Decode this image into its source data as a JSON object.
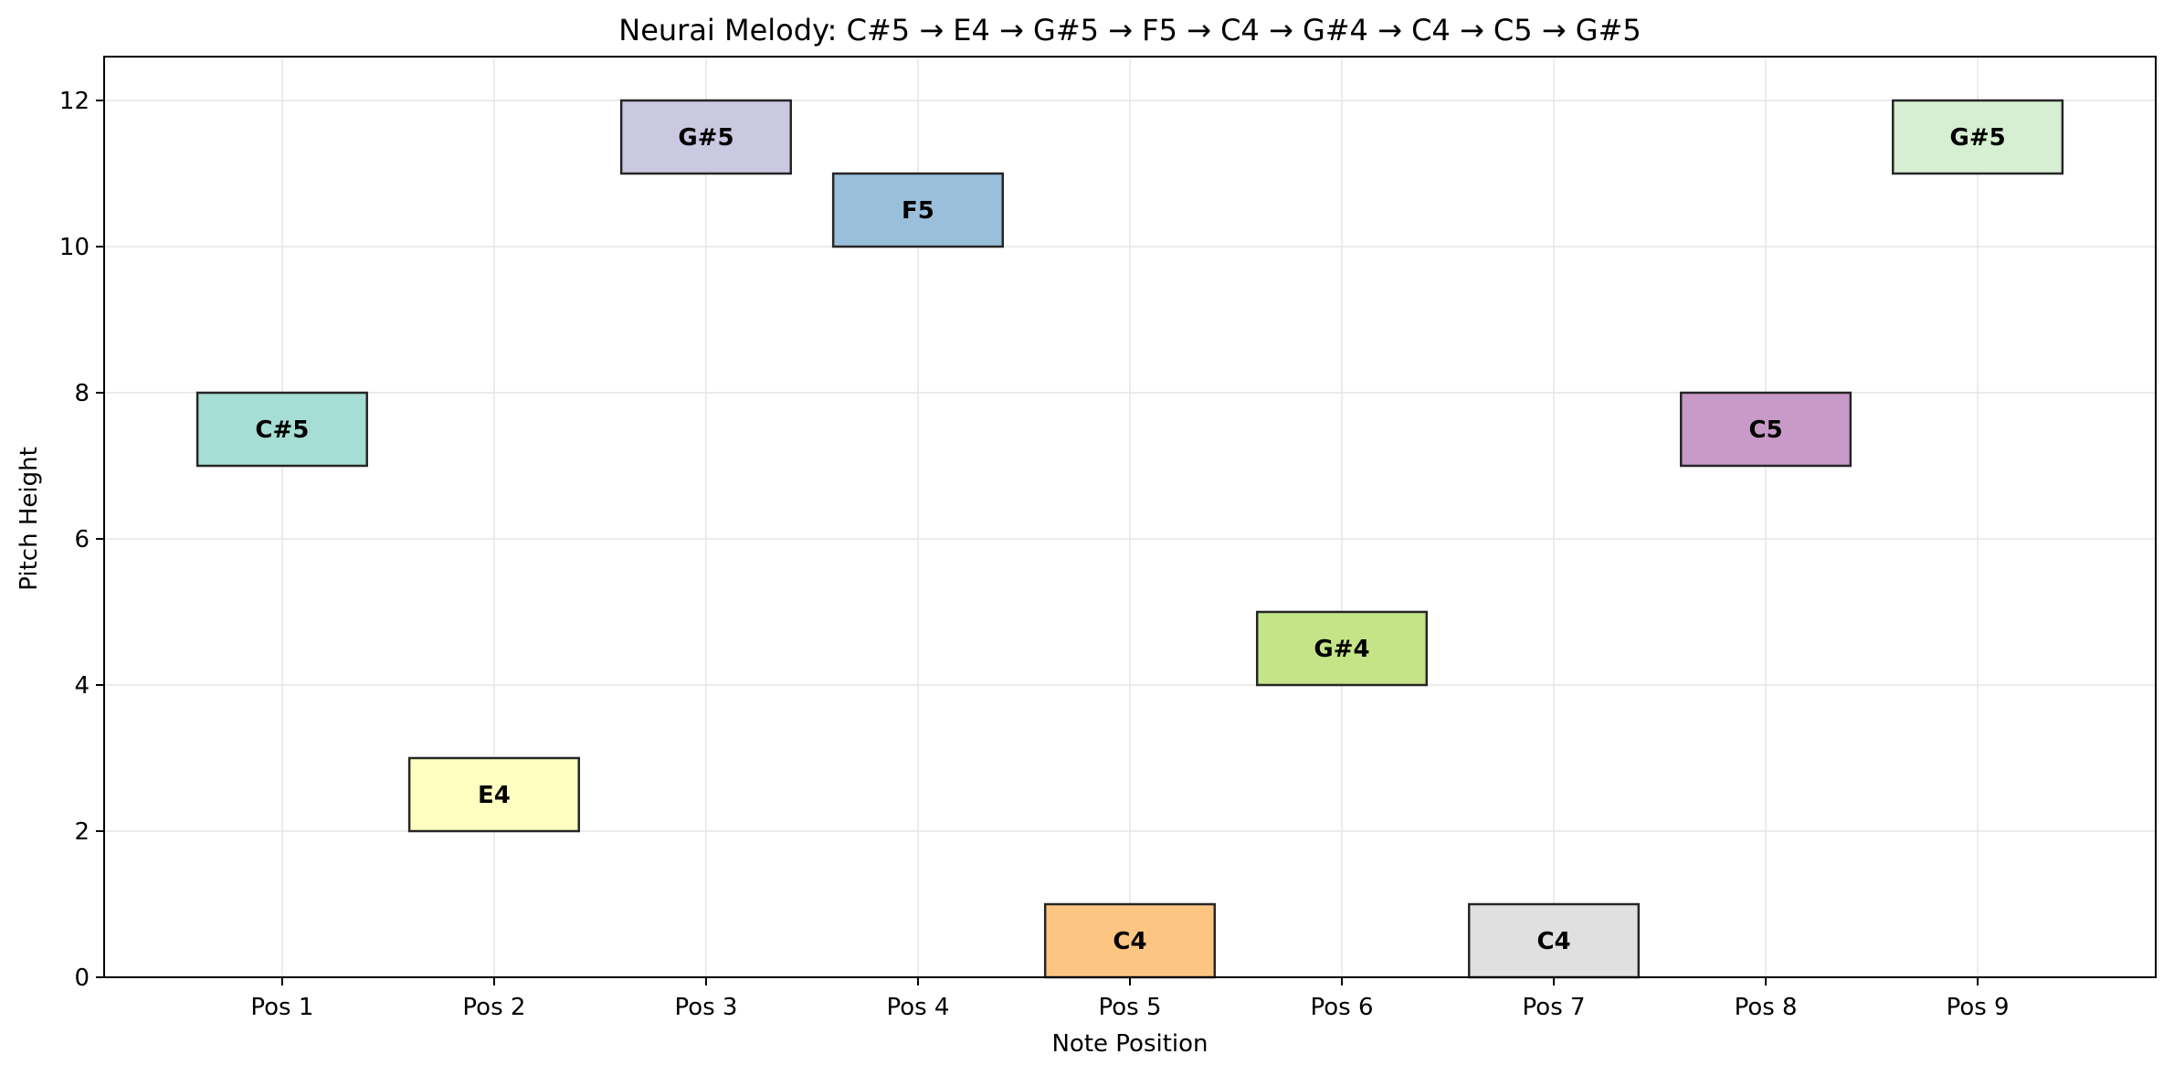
{
  "chart_data": {
    "type": "bar",
    "title": "Neurai Melody: C#5 → E4 → G#5 → F5 → C4 → G#4 → C4 → C5 → G#5",
    "xlabel": "Note Position",
    "ylabel": "Pitch Height",
    "categories": [
      "Pos 1",
      "Pos 2",
      "Pos 3",
      "Pos 4",
      "Pos 5",
      "Pos 6",
      "Pos 7",
      "Pos 8",
      "Pos 9"
    ],
    "ylim": [
      0,
      12.6
    ],
    "yticks": [
      "0",
      "2",
      "4",
      "6",
      "8",
      "10",
      "12"
    ],
    "grid": true,
    "notes": [
      {
        "position": 1,
        "note": "C#5",
        "pitch": 7,
        "duration": 1,
        "color": "#a6ddd4"
      },
      {
        "position": 2,
        "note": "E4",
        "pitch": 2,
        "duration": 1,
        "color": "#ffffc2"
      },
      {
        "position": 3,
        "note": "G#5",
        "pitch": 11,
        "duration": 1,
        "color": "#cbc8e2"
      },
      {
        "position": 4,
        "note": "F5",
        "pitch": 10,
        "duration": 1,
        "color": "#9abfda"
      },
      {
        "position": 5,
        "note": "C4",
        "pitch": 0,
        "duration": 1,
        "color": "#fdc582"
      },
      {
        "position": 6,
        "note": "G#4",
        "pitch": 4,
        "duration": 1,
        "color": "#c5e488"
      },
      {
        "position": 7,
        "note": "C4",
        "pitch": 0,
        "duration": 1,
        "color": "#e0e0e0"
      },
      {
        "position": 8,
        "note": "C5",
        "pitch": 7,
        "duration": 1,
        "color": "#c89ac8"
      },
      {
        "position": 9,
        "note": "G#5",
        "pitch": 11,
        "duration": 1,
        "color": "#d6eed1"
      }
    ]
  }
}
